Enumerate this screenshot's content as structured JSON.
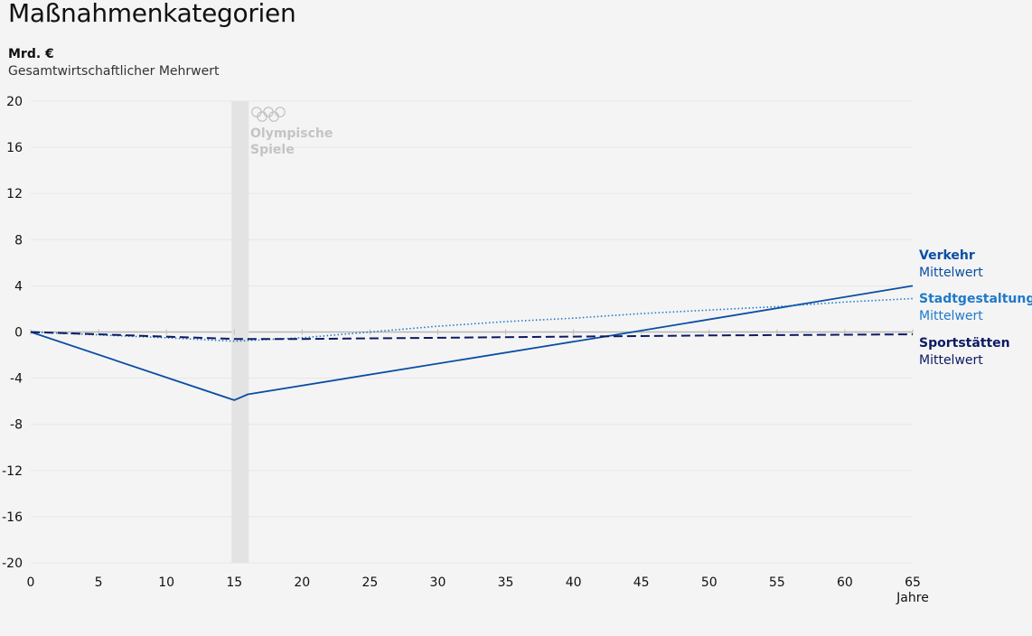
{
  "chart_data": {
    "type": "line",
    "title": "Maßnahmenkategorien",
    "unit": "Mrd. €",
    "ylabel": "Gesamtwirtschaftlicher Mehrwert",
    "xlabel": "Jahre",
    "xlim": [
      0,
      65
    ],
    "ylim": [
      -20,
      20
    ],
    "x_ticks": [
      0,
      5,
      10,
      15,
      20,
      25,
      30,
      35,
      40,
      45,
      50,
      55,
      60,
      65
    ],
    "y_ticks": [
      20,
      16,
      12,
      8,
      4,
      0,
      -4,
      -8,
      -12,
      -16,
      -20
    ],
    "grid": true,
    "event": {
      "label_lines": [
        "Olympische",
        "Spiele"
      ],
      "x_start": 15,
      "x_end": 16
    },
    "series": [
      {
        "name": "Verkehr",
        "sublabel": "Mittelwert",
        "color": "#0a4ea3",
        "style": "solid",
        "x": [
          0,
          15,
          16,
          42.3,
          65
        ],
        "values": [
          0,
          -5.9,
          -5.4,
          -0.4,
          4.0
        ]
      },
      {
        "name": "Stadtgestaltung",
        "sublabel": "Mittelwert",
        "color": "#1f7ac9",
        "style": "dotted",
        "x": [
          0,
          10,
          15,
          20,
          25,
          30,
          35,
          40,
          45,
          50,
          55,
          60,
          65
        ],
        "values": [
          0,
          -0.5,
          -0.8,
          -0.5,
          0.0,
          0.5,
          0.9,
          1.2,
          1.6,
          1.9,
          2.2,
          2.6,
          2.9
        ]
      },
      {
        "name": "Sportstätten",
        "sublabel": "Mittelwert",
        "color": "#0d1a63",
        "style": "dashed",
        "x": [
          0,
          15,
          20,
          30,
          40,
          50,
          65
        ],
        "values": [
          0,
          -0.6,
          -0.6,
          -0.5,
          -0.4,
          -0.3,
          -0.2
        ]
      }
    ]
  }
}
